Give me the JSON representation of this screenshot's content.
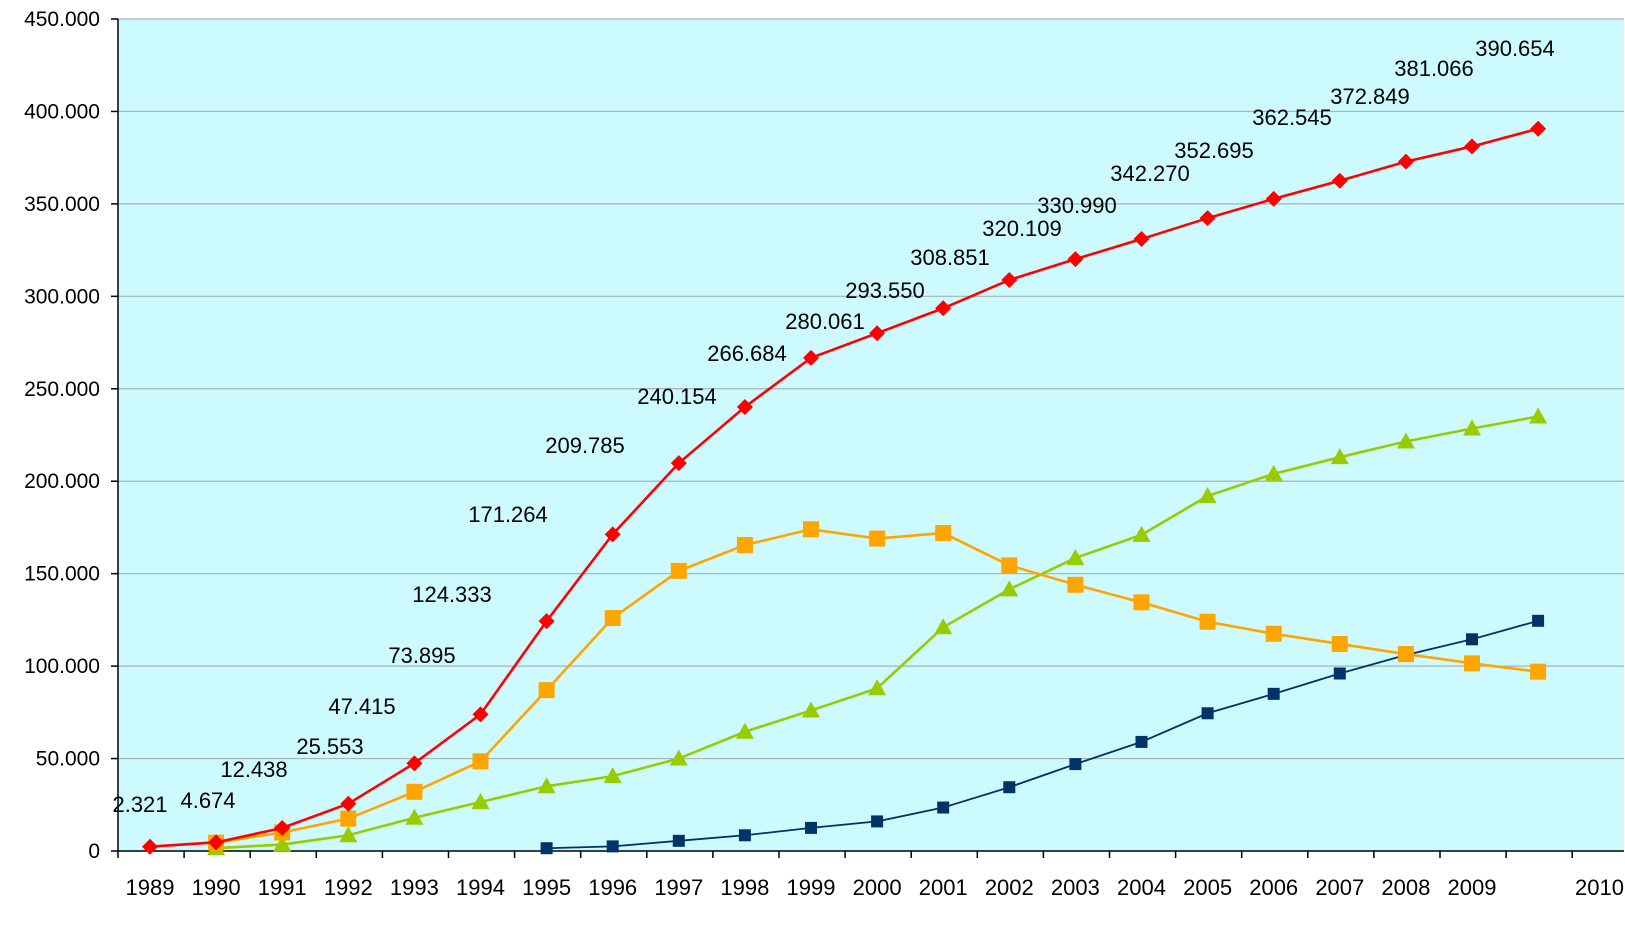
{
  "chart_data": {
    "type": "line",
    "x": [
      "1989",
      "1990",
      "1991",
      "1992",
      "1993",
      "1994",
      "1995",
      "1996",
      "1997",
      "1998",
      "1999",
      "2000",
      "2001",
      "2002",
      "2003",
      "2004",
      "2005",
      "2006",
      "2007",
      "2008",
      "2009",
      "2010"
    ],
    "ylim": [
      0,
      450000
    ],
    "yticks": [
      0,
      50000,
      100000,
      150000,
      200000,
      250000,
      300000,
      350000,
      400000,
      450000
    ],
    "ytick_labels": [
      "0",
      "50.000",
      "100.000",
      "150.000",
      "200.000",
      "250.000",
      "300.000",
      "350.000",
      "400.000",
      "450.000"
    ],
    "grid": true,
    "plot_background": "#ccfaff",
    "grid_color": "#a6b2b5",
    "series": [
      {
        "color": "#ff0000",
        "marker": "diamond",
        "values": [
          2321,
          4674,
          12438,
          25553,
          47415,
          73895,
          124333,
          171264,
          209785,
          240154,
          266684,
          280061,
          293550,
          308851,
          320109,
          330990,
          342270,
          352695,
          362545,
          372849,
          381066,
          390654
        ],
        "labels": [
          "2.321",
          "4.674",
          "12.438",
          "25.553",
          "47.415",
          "73.895",
          "124.333",
          "171.264",
          "209.785",
          "240.154",
          "266.684",
          "280.061",
          "293.550",
          "308.851",
          "320.109",
          "330.990",
          "342.270",
          "352.695",
          "362.545",
          "372.849",
          "381.066",
          "390.654"
        ]
      },
      {
        "color": "#ffa500",
        "marker": "square",
        "values": [
          null,
          4500,
          10000,
          17500,
          32000,
          48500,
          87000,
          126000,
          151500,
          165500,
          174000,
          169000,
          172000,
          154500,
          144000,
          134500,
          124000,
          117500,
          112000,
          106500,
          101500,
          97000
        ]
      },
      {
        "color": "#99cc00",
        "marker": "triangle",
        "values": [
          null,
          1500,
          3500,
          8500,
          18000,
          26500,
          35000,
          40500,
          50000,
          64500,
          76000,
          88000,
          121000,
          141500,
          158500,
          171000,
          192000,
          204000,
          213000,
          221500,
          228500,
          235000
        ]
      },
      {
        "color": "#003366",
        "marker": "square-small",
        "values": [
          null,
          null,
          null,
          null,
          null,
          null,
          1500,
          2500,
          5500,
          8500,
          12500,
          16000,
          23500,
          34500,
          47000,
          59000,
          74500,
          85000,
          96000,
          106000,
          114500,
          124500
        ]
      }
    ]
  }
}
